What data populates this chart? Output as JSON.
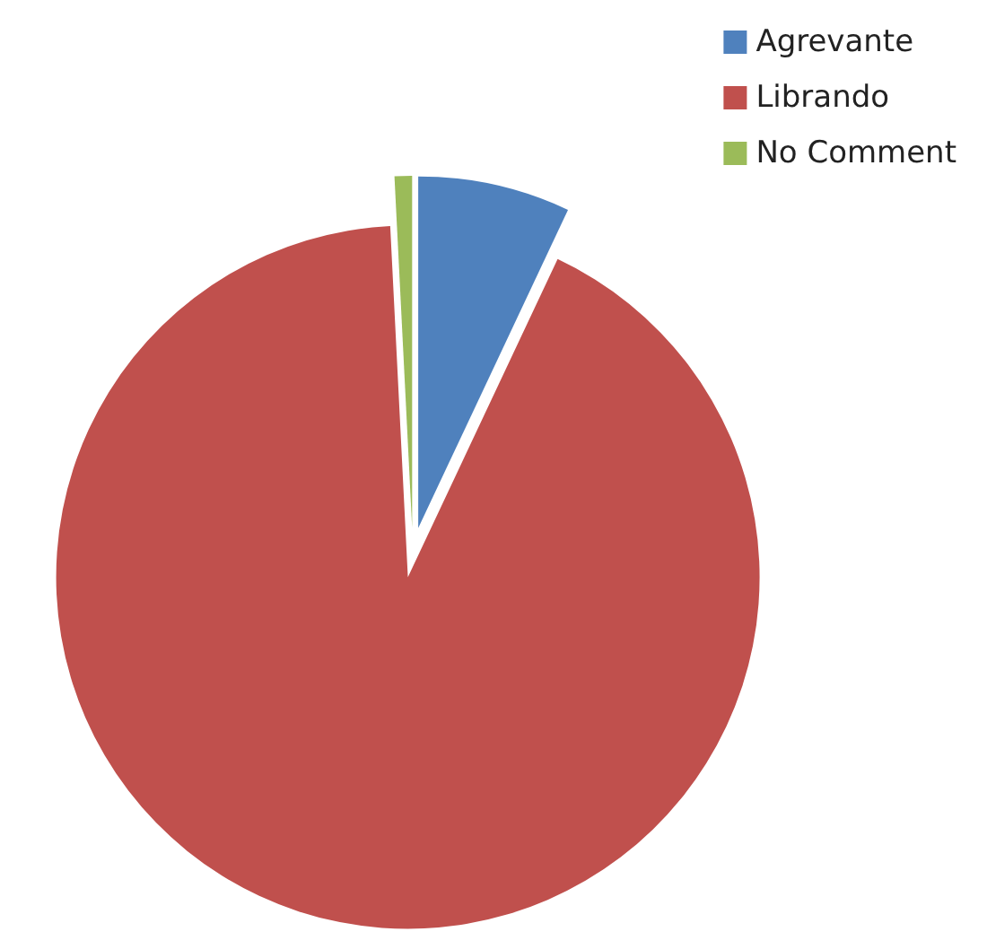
{
  "chart_data": {
    "type": "pie",
    "categories": [
      "Agrevante",
      "Librando",
      "No Comment"
    ],
    "values": [
      7,
      92.2,
      0.8
    ],
    "colors": [
      "#4f81bd",
      "#c0504d",
      "#9bbb59"
    ],
    "legend": "top right"
  }
}
